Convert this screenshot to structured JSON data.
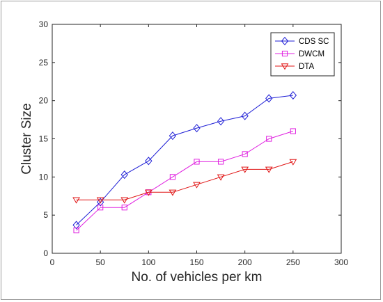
{
  "chart_data": {
    "type": "line",
    "title": "",
    "xlabel": "No. of vehicles per km",
    "ylabel": "Cluster Size",
    "xlim": [
      0,
      300
    ],
    "ylim": [
      0,
      30
    ],
    "xticks": [
      0,
      50,
      100,
      150,
      200,
      250,
      300
    ],
    "yticks": [
      0,
      5,
      10,
      15,
      20,
      25,
      30
    ],
    "grid": false,
    "legend_position": "top-right",
    "x": [
      25,
      50,
      75,
      100,
      125,
      150,
      175,
      200,
      225,
      250
    ],
    "series": [
      {
        "name": "CDS SC",
        "color": "#1f1fd6",
        "marker": "diamond",
        "values": [
          3.7,
          6.7,
          10.3,
          12.1,
          15.4,
          16.4,
          17.3,
          18.0,
          20.3,
          20.7
        ]
      },
      {
        "name": "DWCM",
        "color": "#e020e0",
        "marker": "square",
        "values": [
          3.0,
          6.0,
          6.0,
          8.0,
          10.0,
          12.0,
          12.0,
          13.0,
          15.0,
          16.0
        ]
      },
      {
        "name": "DTA",
        "color": "#e01515",
        "marker": "triangle-down",
        "values": [
          7.0,
          7.0,
          7.0,
          8.0,
          8.0,
          9.0,
          10.0,
          11.0,
          11.0,
          12.0
        ]
      }
    ]
  }
}
